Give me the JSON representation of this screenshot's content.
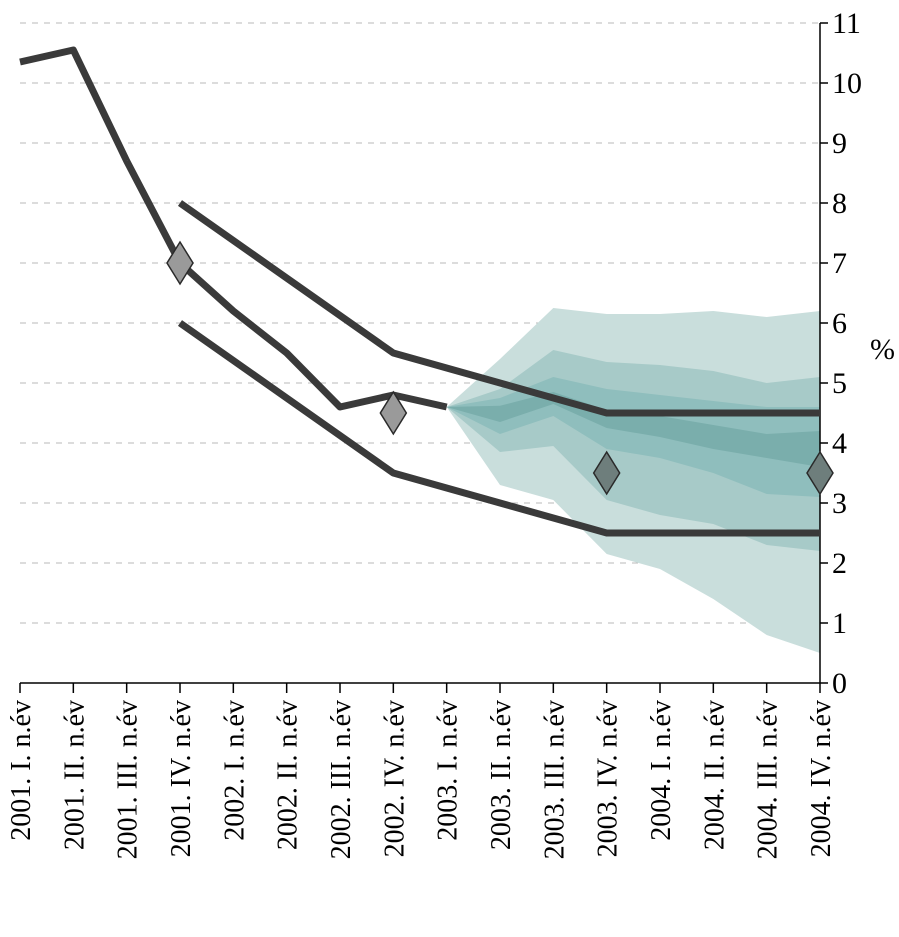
{
  "chart_data": {
    "type": "area",
    "categories": [
      "2001. I. n.év",
      "2001. II. n.év",
      "2001. III. n.év",
      "2001. IV. n.év",
      "2002. I. n.év",
      "2002. II. n.év",
      "2002. III. n.év",
      "2002. IV. n.év",
      "2003. I. n.év",
      "2003. II. n.év",
      "2003. III. n.év",
      "2003. IV. n.év",
      "2004. I. n.év",
      "2004. II. n.év",
      "2004. III. n.év",
      "2004. IV. n.év"
    ],
    "y_axis": {
      "position": "right",
      "ylim": [
        0,
        11
      ],
      "ticks": [
        0,
        1,
        2,
        3,
        4,
        5,
        6,
        7,
        8,
        9,
        10,
        11
      ],
      "unit": "%"
    },
    "grid": true,
    "legend": "none",
    "colors": {
      "line": "#3a3a3a",
      "band_outer": "#c9dedc",
      "band_mid": "#a7cac8",
      "band_inner": "#8fbebd",
      "band_core": "#7aaeac",
      "marker_light": "#9a9a9a",
      "marker_dark": "#6e7e7c"
    },
    "fan_bands": [
      {
        "level": "outer",
        "upper": [
          null,
          null,
          null,
          null,
          null,
          null,
          null,
          null,
          4.6,
          5.4,
          6.25,
          6.15,
          6.15,
          6.2,
          6.1,
          6.2
        ],
        "lower": [
          null,
          null,
          null,
          null,
          null,
          null,
          null,
          null,
          4.6,
          3.3,
          3.05,
          2.15,
          1.9,
          1.4,
          0.8,
          0.5
        ]
      },
      {
        "level": "mid",
        "upper": [
          null,
          null,
          null,
          null,
          null,
          null,
          null,
          null,
          4.6,
          4.9,
          5.55,
          5.35,
          5.3,
          5.2,
          5.0,
          5.1
        ],
        "lower": [
          null,
          null,
          null,
          null,
          null,
          null,
          null,
          null,
          4.6,
          3.85,
          3.95,
          3.05,
          2.8,
          2.65,
          2.3,
          2.2
        ]
      },
      {
        "level": "inner",
        "upper": [
          null,
          null,
          null,
          null,
          null,
          null,
          null,
          null,
          4.6,
          4.75,
          5.1,
          4.9,
          4.8,
          4.7,
          4.6,
          4.6
        ],
        "lower": [
          null,
          null,
          null,
          null,
          null,
          null,
          null,
          null,
          4.6,
          4.15,
          4.45,
          3.9,
          3.75,
          3.5,
          3.15,
          3.1
        ]
      },
      {
        "level": "core",
        "upper": [
          null,
          null,
          null,
          null,
          null,
          null,
          null,
          null,
          4.6,
          4.62,
          4.85,
          4.55,
          4.45,
          4.3,
          4.15,
          4.2
        ],
        "lower": [
          null,
          null,
          null,
          null,
          null,
          null,
          null,
          null,
          4.6,
          4.35,
          4.65,
          4.25,
          4.1,
          3.9,
          3.75,
          3.6
        ]
      }
    ],
    "series": [
      {
        "values": [
          10.35,
          10.55,
          8.7,
          7.0,
          6.2,
          5.5,
          4.6,
          4.8,
          4.6,
          null,
          null,
          null,
          null,
          null,
          null,
          null
        ]
      },
      {
        "values": [
          null,
          null,
          null,
          8.0,
          null,
          null,
          null,
          5.5,
          null,
          null,
          null,
          4.5,
          4.5,
          4.5,
          4.5,
          4.5
        ]
      },
      {
        "values": [
          null,
          null,
          null,
          6.0,
          null,
          null,
          null,
          3.5,
          null,
          null,
          null,
          2.5,
          2.5,
          2.5,
          2.5,
          2.5
        ]
      }
    ],
    "markers": [
      {
        "x": "2001. IV. n.év",
        "y": 7.0,
        "shade": "light"
      },
      {
        "x": "2002. IV. n.év",
        "y": 4.5,
        "shade": "light"
      },
      {
        "x": "2003. IV. n.év",
        "y": 3.5,
        "shade": "dark"
      },
      {
        "x": "2004. IV. n.év",
        "y": 3.5,
        "shade": "dark"
      }
    ]
  }
}
